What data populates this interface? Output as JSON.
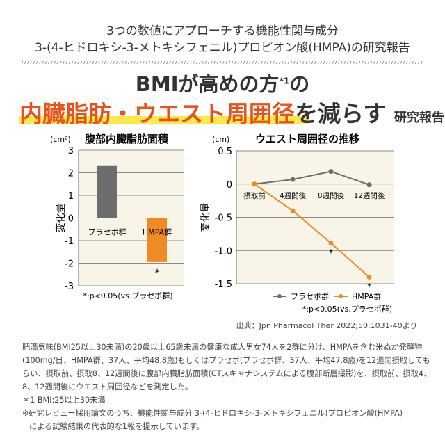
{
  "header": {
    "line1": "3つの数値にアプローチする機能性関与成分",
    "line2": "3-(4-ヒドロキシ-3-メトキシフェニル)プロピオン酸(HMPA)の研究報告"
  },
  "title": {
    "line1": "BMIが高めの方",
    "sup": "*1",
    "line1_end": "の",
    "highlight": "内臓脂肪・ウエスト周囲径",
    "verb": "を減らす",
    "suffix": "研究報告"
  },
  "colors": {
    "placebo": "#6d6d6d",
    "hmpa": "#ef8a24",
    "plot_bg": "#f8f5e8",
    "title_orange": "#e8531d",
    "highlight": "#fbe84a"
  },
  "chart_data": [
    {
      "type": "bar",
      "title": "腹部内臓脂肪面積",
      "unit": "(cm²)",
      "ylabel": "変化量",
      "ylim": [
        -3,
        3
      ],
      "yticks": [
        "3",
        "2",
        "1",
        "0",
        "-1",
        "-2",
        "-3"
      ],
      "categories": [
        "プラセボ群",
        "HMPA群"
      ],
      "values": [
        2.3,
        -1.95
      ],
      "significance": [
        "",
        "*"
      ],
      "note": "*:p<0.05(vs.プラセボ群)",
      "grid": true
    },
    {
      "type": "line",
      "title": "ウエスト周囲径の推移",
      "unit": "(cm)",
      "ylabel": "変化量",
      "ylim": [
        -1.5,
        0.5
      ],
      "yticks": [
        "0.5",
        "0",
        "-0.5",
        "-1.0",
        "-1.5"
      ],
      "categories": [
        "摂取前",
        "4週間後",
        "8週間後",
        "12週間後"
      ],
      "series": [
        {
          "name": "プラセボ群",
          "values": [
            0,
            0.07,
            0.19,
            -0.01
          ]
        },
        {
          "name": "HMPA群",
          "values": [
            0,
            -0.4,
            -0.89,
            -1.4
          ],
          "significance": [
            "",
            "",
            "*",
            "*"
          ]
        }
      ],
      "note": "*:p<0.05(vs.プラセボ群)",
      "legend": "bottom-right",
      "grid": true
    }
  ],
  "source": "出典：Jpn Pharmacol Ther 2022;50:1031-40より",
  "footnotes": {
    "body": "肥満気味(BMI25以上30未満)の20歳以上65歳未満の健康な成人男女74人を2群に分け、HMPAを含む米ぬか発酵物(100mg/日、HMPA群、37人、平均48.8歳)もしくはプラセボ(プラセボ群、37人、平均47.8歳)を12週間摂取してもらい、摂取前、摂取8、12週間後に腹部内臓脂肪面積(CTスキャナシステムによる腹部断層撮影)を、摂取前、摂取4、8、12週間後にウエスト周囲径などを測定した。",
    "note1": "＊1 BMI:25以上30未満",
    "note2": "※研究レビュー採用論文のうち、機能性関与成分 3-(4-ヒドロキシ-3-メトキシフェニル)プロピオン酸(HMPA)",
    "note3": "による試験結果の代表的な1報を提示しています。"
  }
}
